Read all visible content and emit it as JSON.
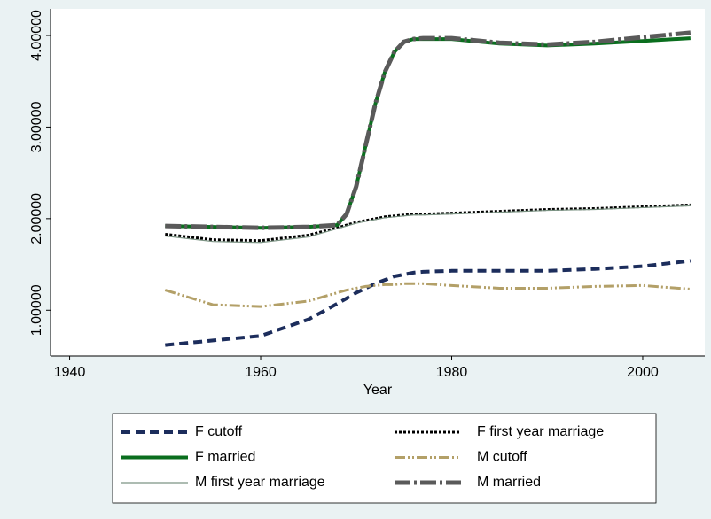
{
  "chart_data": {
    "type": "line",
    "x": [
      1950,
      1955,
      1960,
      1965,
      1968,
      1969,
      1970,
      1971,
      1972,
      1973,
      1974,
      1975,
      1976,
      1977,
      1980,
      1985,
      1990,
      1995,
      2000,
      2005
    ],
    "xlabel": "Year",
    "xlim": [
      1938,
      2006.5
    ],
    "xticks": [
      1940,
      1960,
      1980,
      2000
    ],
    "ylim": [
      0.5,
      4.29
    ],
    "yticks": [
      {
        "value": 1,
        "label": "1.00000"
      },
      {
        "value": 2,
        "label": "2.00000"
      },
      {
        "value": 3,
        "label": "3.00000"
      },
      {
        "value": 4,
        "label": "4.00000"
      }
    ],
    "grid": false,
    "series": [
      {
        "name": "F cutoff",
        "color": "#1c2d5c",
        "values": [
          0.62,
          0.67,
          0.72,
          0.9,
          1.07,
          1.13,
          1.19,
          1.24,
          1.29,
          1.33,
          1.37,
          1.39,
          1.41,
          1.42,
          1.43,
          1.43,
          1.43,
          1.45,
          1.48,
          1.54
        ]
      },
      {
        "name": "F first year marriage",
        "color": "#000000",
        "values": [
          1.83,
          1.77,
          1.76,
          1.82,
          1.9,
          1.93,
          1.96,
          1.98,
          2.0,
          2.02,
          2.03,
          2.04,
          2.05,
          2.05,
          2.06,
          2.08,
          2.1,
          2.11,
          2.13,
          2.15
        ]
      },
      {
        "name": "F married",
        "color": "#0a6e1e",
        "values": [
          1.92,
          1.91,
          1.9,
          1.91,
          1.93,
          2.05,
          2.35,
          2.8,
          3.25,
          3.6,
          3.82,
          3.93,
          3.96,
          3.96,
          3.96,
          3.91,
          3.89,
          3.91,
          3.94,
          3.97
        ]
      },
      {
        "name": "M cutoff",
        "color": "#b3a068",
        "values": [
          1.22,
          1.06,
          1.04,
          1.1,
          1.19,
          1.22,
          1.24,
          1.26,
          1.27,
          1.28,
          1.28,
          1.29,
          1.29,
          1.29,
          1.27,
          1.24,
          1.24,
          1.26,
          1.27,
          1.23
        ]
      },
      {
        "name": "M first year marriage",
        "color": "#7c9484",
        "values": [
          1.81,
          1.75,
          1.74,
          1.8,
          1.89,
          1.92,
          1.95,
          1.97,
          1.99,
          2.01,
          2.02,
          2.03,
          2.04,
          2.04,
          2.05,
          2.07,
          2.09,
          2.1,
          2.12,
          2.14
        ]
      },
      {
        "name": "M married",
        "color": "#5a5a5a",
        "values": [
          1.92,
          1.91,
          1.9,
          1.91,
          1.93,
          2.05,
          2.35,
          2.8,
          3.25,
          3.6,
          3.82,
          3.93,
          3.96,
          3.97,
          3.97,
          3.92,
          3.9,
          3.93,
          3.98,
          4.03
        ]
      }
    ]
  }
}
